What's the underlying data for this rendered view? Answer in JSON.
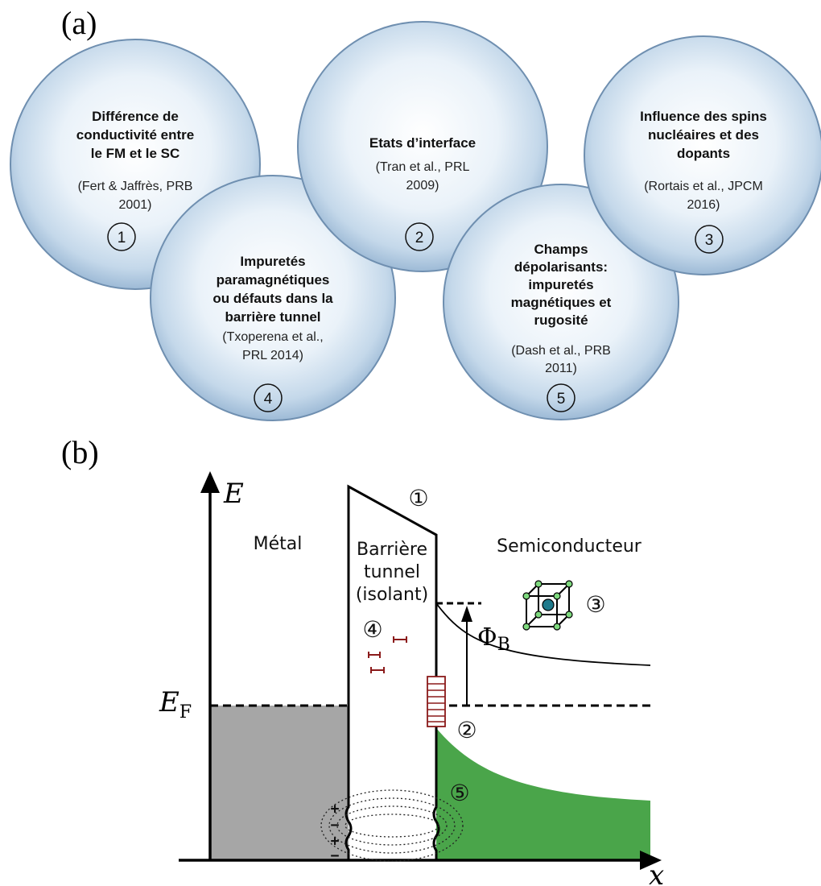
{
  "panel_a": {
    "label": "(a)",
    "circles": [
      {
        "title_lines": [
          "Différence de",
          "conductivité entre",
          "le FM et le SC"
        ],
        "ref_lines": [
          "(Fert & Jaffrès, PRB",
          "2001)"
        ],
        "number": "1"
      },
      {
        "title_lines": [
          "Etats d’interface"
        ],
        "ref_lines": [
          "(Tran et al., PRL",
          "2009)"
        ],
        "number": "2"
      },
      {
        "title_lines": [
          "Influence des spins",
          "nucléaires et des",
          "dopants"
        ],
        "ref_lines": [
          "(Rortais et al., JPCM",
          "2016)"
        ],
        "number": "3"
      },
      {
        "title_lines": [
          "Impuretés",
          "paramagnétiques",
          "ou défauts dans la",
          "barrière tunnel"
        ],
        "ref_lines": [
          "(Txoperena et al.,",
          "PRL 2014)"
        ],
        "number": "4"
      },
      {
        "title_lines": [
          "Champs",
          "dépolarisants:",
          "impuretés",
          "magnétiques et",
          "rugosité"
        ],
        "ref_lines": [
          "(Dash et al., PRB",
          "2011)"
        ],
        "number": "5"
      }
    ]
  },
  "panel_b": {
    "label": "(b)",
    "y_axis": "E",
    "x_axis": "x",
    "fermi_main": "E",
    "fermi_sub": "F",
    "barrier_main": "Φ",
    "barrier_sub": "B",
    "metal": "Métal",
    "barrier_lines": [
      "Barrière",
      "tunnel",
      "(isolant)"
    ],
    "semiconductor": "Semiconducteur",
    "markers": [
      "①",
      "②",
      "③",
      "④",
      "⑤"
    ],
    "charges": [
      "+",
      "−",
      "+",
      "−"
    ]
  },
  "colors": {
    "circle_fill": "#c9dced",
    "circle_edge": "#6f8fb0",
    "metal_fill": "#a6a6a6",
    "sc_fill": "#4aa54a",
    "defect": "#8b1a1a",
    "atom": "#1f7a8c"
  }
}
